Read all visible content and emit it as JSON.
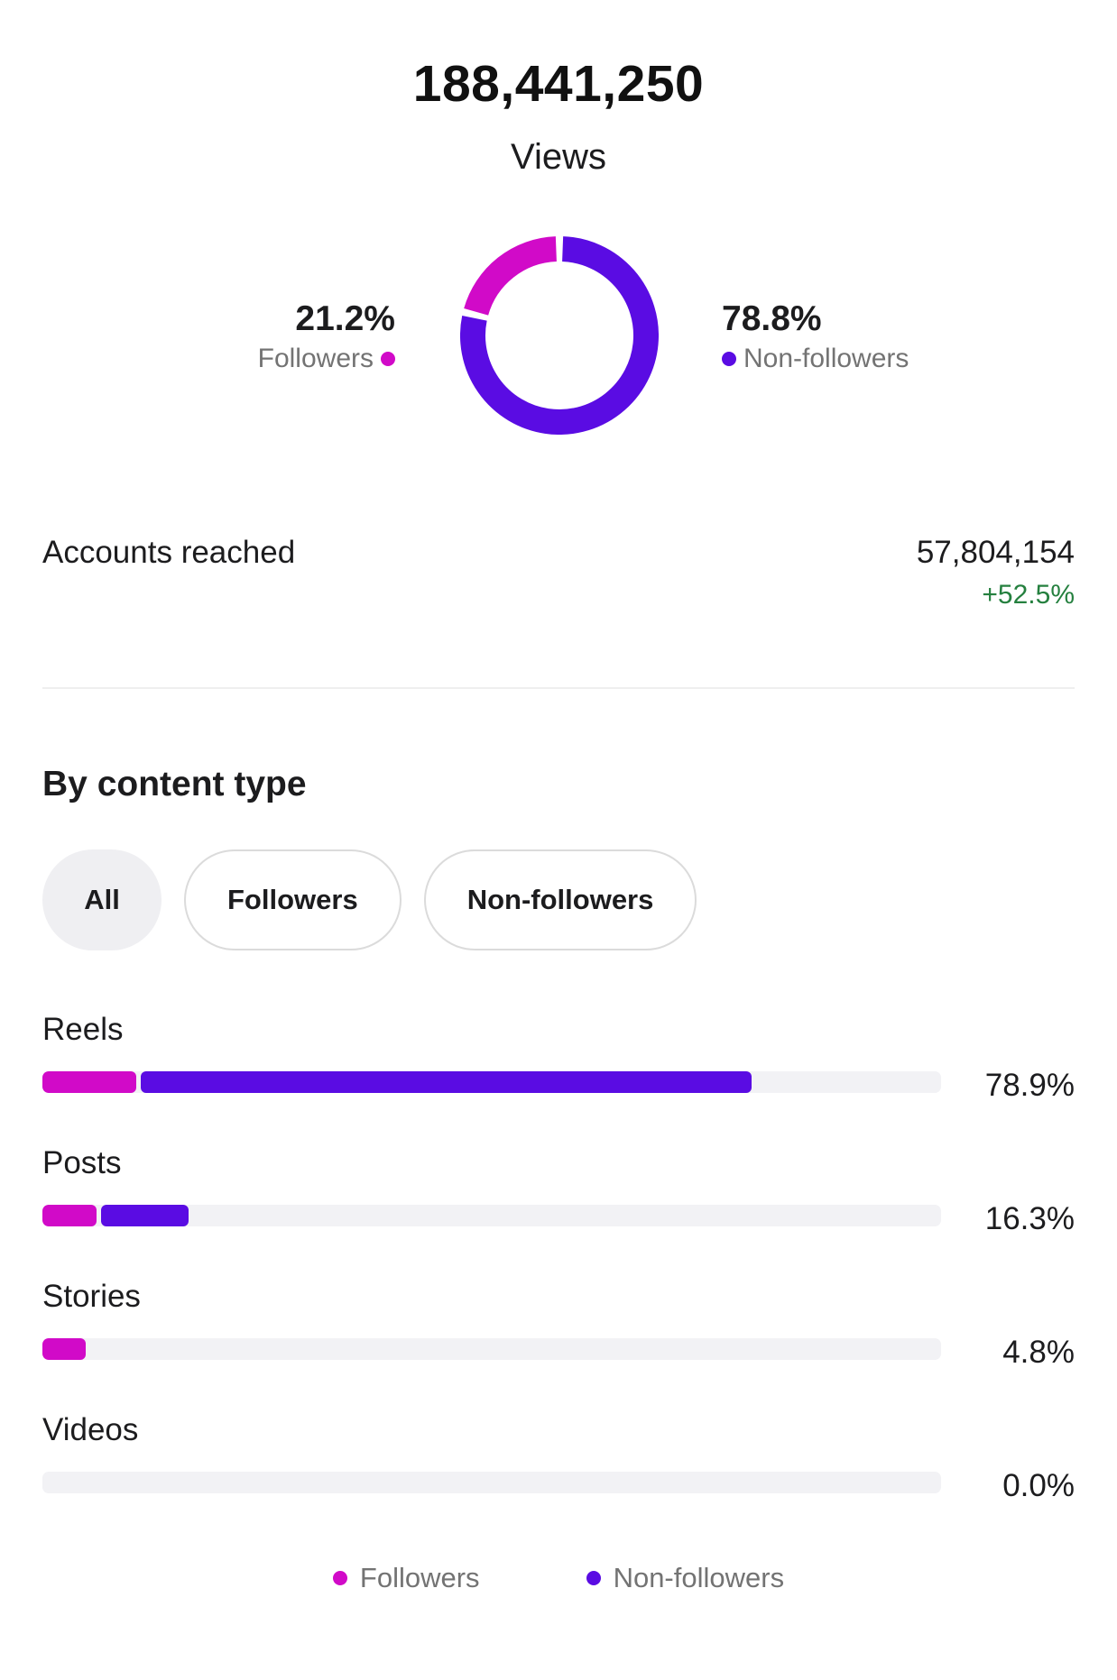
{
  "summary": {
    "total_views": "188,441,250",
    "views_label": "Views"
  },
  "colors": {
    "followers": "#d10ac8",
    "non_followers": "#5a0ce3",
    "track": "#f2f2f5",
    "positive_change": "#25803f"
  },
  "chart_data": [
    {
      "type": "pie",
      "style": "donut",
      "categories": [
        "Followers",
        "Non-followers"
      ],
      "values": [
        21.2,
        78.8
      ],
      "labels": [
        "21.2%",
        "78.8%"
      ]
    },
    {
      "type": "bar",
      "orientation": "horizontal",
      "stacked": true,
      "categories": [
        "Reels",
        "Posts",
        "Stories",
        "Videos"
      ],
      "series": [
        {
          "name": "Followers",
          "values": [
            10.4,
            6.0,
            4.8,
            0.0
          ]
        },
        {
          "name": "Non-followers",
          "values": [
            68.5,
            10.3,
            0.0,
            0.0
          ]
        }
      ],
      "totals": [
        "78.9%",
        "16.3%",
        "4.8%",
        "0.0%"
      ],
      "xlim": [
        0,
        100
      ]
    }
  ],
  "donut": {
    "followers_pct": "21.2%",
    "followers_label": "Followers",
    "non_followers_pct": "78.8%",
    "non_followers_label": "Non-followers"
  },
  "reach": {
    "label": "Accounts reached",
    "value": "57,804,154",
    "change": "+52.5%"
  },
  "content_type": {
    "title": "By content type",
    "filters": [
      "All",
      "Followers",
      "Non-followers"
    ],
    "active_filter": "All",
    "rows": [
      {
        "label": "Reels",
        "total": "78.9%"
      },
      {
        "label": "Posts",
        "total": "16.3%"
      },
      {
        "label": "Stories",
        "total": "4.8%"
      },
      {
        "label": "Videos",
        "total": "0.0%"
      }
    ]
  },
  "legend": {
    "followers": "Followers",
    "non_followers": "Non-followers"
  }
}
